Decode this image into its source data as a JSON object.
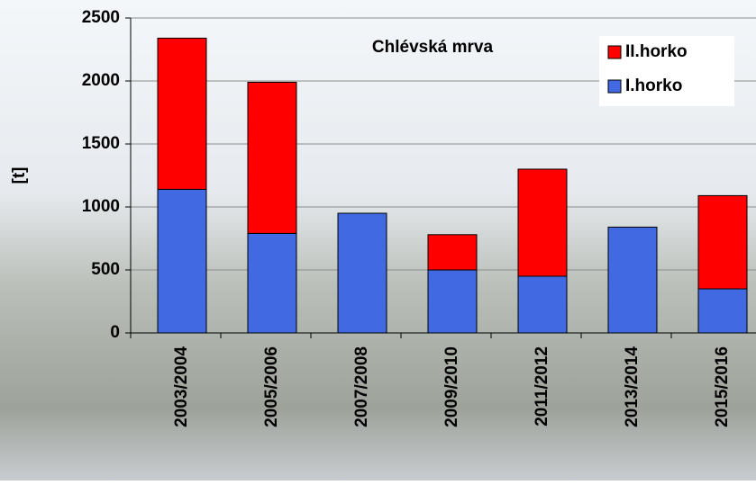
{
  "chart_data": {
    "type": "stacked_bar",
    "title": "Chlévská mrva",
    "y_label": "[t]",
    "categories": [
      "2003/2004",
      "2005/2006",
      "2007/2008",
      "2009/2010",
      "2011/2012",
      "2013/2014",
      "2015/2016"
    ],
    "series": [
      {
        "name": "I.horko",
        "color": "#4169e1",
        "values": [
          1140,
          790,
          950,
          500,
          450,
          840,
          350
        ]
      },
      {
        "name": "II.horko",
        "color": "#ff0000",
        "values": [
          1200,
          1200,
          0,
          280,
          850,
          0,
          740
        ]
      }
    ],
    "ylim": [
      0,
      2500
    ],
    "yticks": [
      0,
      500,
      1000,
      1500,
      2000,
      2500
    ],
    "grid": true,
    "legend": "upper right"
  }
}
